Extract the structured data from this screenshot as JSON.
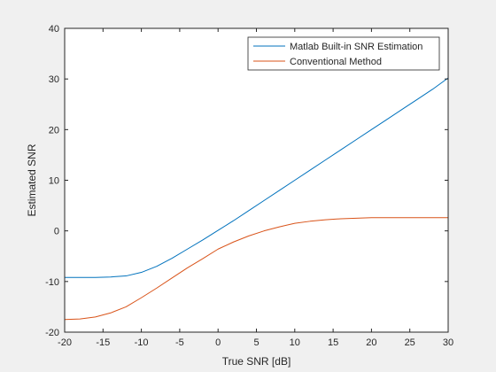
{
  "chart_data": {
    "type": "line",
    "title": "",
    "xlabel": "True SNR [dB]",
    "ylabel": "Estimated SNR",
    "xlim": [
      -20,
      30
    ],
    "ylim": [
      -20,
      40
    ],
    "xticks": [
      -20,
      -15,
      -10,
      -5,
      0,
      5,
      10,
      15,
      20,
      25,
      30
    ],
    "yticks": [
      -20,
      -10,
      0,
      10,
      20,
      30,
      40
    ],
    "xtick_labels": [
      "-20",
      "-15",
      "-10",
      "-5",
      "0",
      "5",
      "10",
      "15",
      "20",
      "25",
      "30"
    ],
    "ytick_labels": [
      "-20",
      "-10",
      "0",
      "10",
      "20",
      "30",
      "40"
    ],
    "grid": false,
    "legend_position": "top-right",
    "x": [
      -20,
      -18,
      -16,
      -14,
      -12,
      -10,
      -8,
      -6,
      -4,
      -2,
      0,
      2,
      4,
      6,
      8,
      10,
      12,
      14,
      16,
      18,
      20,
      22,
      24,
      26,
      28,
      30
    ],
    "series": [
      {
        "name": "Matlab Built-in SNR Estimation",
        "color": "#0072BD",
        "values": [
          -9.2,
          -9.2,
          -9.2,
          -9.1,
          -8.9,
          -8.2,
          -7.0,
          -5.4,
          -3.6,
          -1.8,
          0.1,
          2.0,
          4.0,
          6.0,
          8.0,
          10.0,
          12.0,
          14.0,
          16.0,
          18.0,
          20.0,
          22.0,
          24.0,
          26.0,
          28.0,
          30.2
        ]
      },
      {
        "name": "Conventional Method",
        "color": "#D95319",
        "values": [
          -17.5,
          -17.4,
          -17.0,
          -16.2,
          -15.0,
          -13.2,
          -11.3,
          -9.3,
          -7.3,
          -5.5,
          -3.6,
          -2.2,
          -1.0,
          0.0,
          0.8,
          1.5,
          1.9,
          2.2,
          2.4,
          2.5,
          2.6,
          2.6,
          2.6,
          2.6,
          2.6,
          2.6
        ]
      }
    ]
  }
}
